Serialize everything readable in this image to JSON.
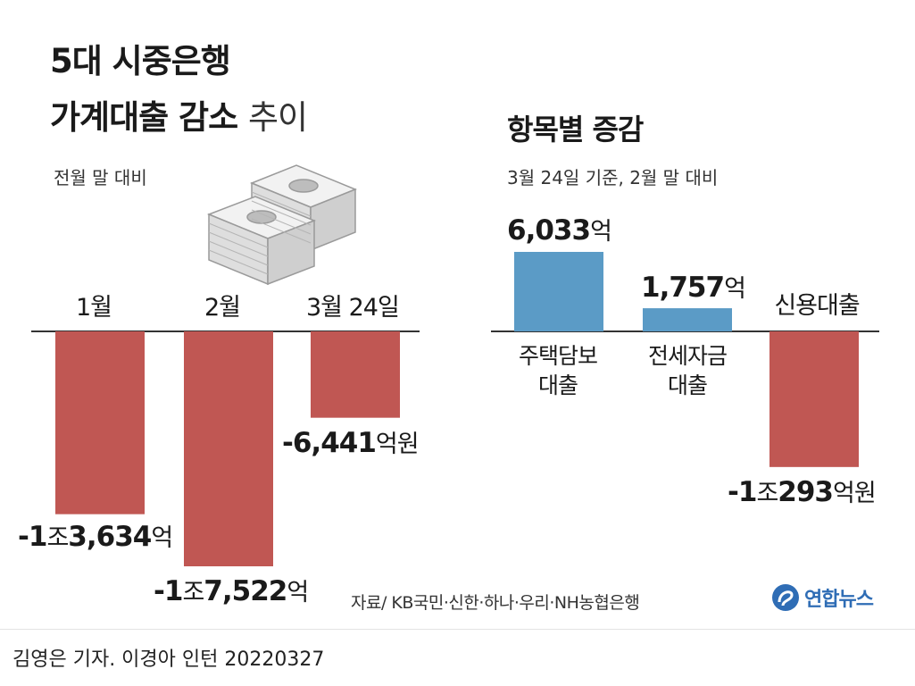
{
  "title": {
    "line1": "5대 시중은행",
    "line2_bold": "가계대출 감소",
    "line2_light": "추이"
  },
  "subtitle_left": "전월 말 대비",
  "right_title": "항목별 증감",
  "right_subtitle": "3월 24일 기준, 2월 말 대비",
  "source": "자료/ KB국민·신한·하나·우리·NH농협은행",
  "logo_text": "연합뉴스",
  "credit": "김영은 기자. 이경아 인턴 20220327",
  "colors": {
    "negative": "#c05753",
    "positive": "#5b9bc6",
    "baseline": "#333333"
  },
  "chart_data": [
    {
      "type": "bar",
      "title": "5대 시중은행 가계대출 감소 추이",
      "subtitle": "전월 말 대비",
      "categories": [
        "1월",
        "2월",
        "3월 24일"
      ],
      "values": [
        -13634,
        -17522,
        -6441
      ],
      "unit": "억원",
      "labels": [
        {
          "num": "-1",
          "mid": "조",
          "num2": "3,634",
          "unit": "억"
        },
        {
          "num": "-1",
          "mid": "조",
          "num2": "7,522",
          "unit": "억"
        },
        {
          "num": "-6,441",
          "mid": "",
          "num2": "",
          "unit": "억원"
        }
      ]
    },
    {
      "type": "bar",
      "title": "항목별 증감",
      "subtitle": "3월 24일 기준, 2월 말 대비",
      "categories": [
        "주택담보 대출",
        "전세자금 대출",
        "신용대출"
      ],
      "category_lines": [
        [
          "주택담보",
          "대출"
        ],
        [
          "전세자금",
          "대출"
        ],
        [
          "신용대출"
        ]
      ],
      "values": [
        6033,
        1757,
        -10293
      ],
      "unit": "억원",
      "labels": [
        {
          "num": "6,033",
          "mid": "",
          "num2": "",
          "unit": "억"
        },
        {
          "num": "1,757",
          "mid": "",
          "num2": "",
          "unit": "억"
        },
        {
          "num": "-1",
          "mid": "조",
          "num2": "293",
          "unit": "억원"
        }
      ]
    }
  ]
}
